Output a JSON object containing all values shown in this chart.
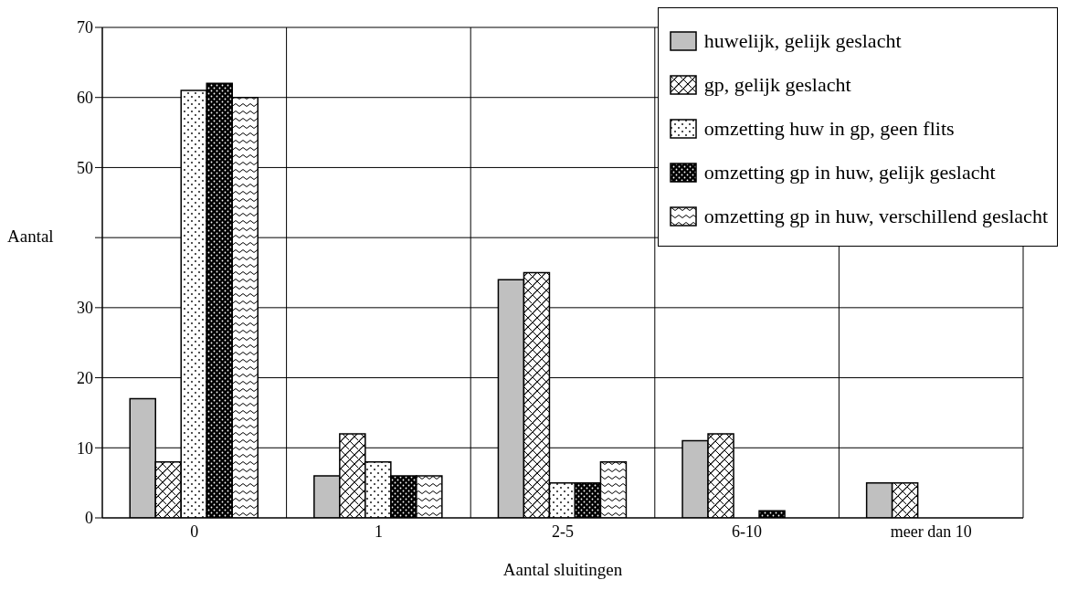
{
  "chart_data": {
    "type": "bar",
    "xlabel": "Aantal sluitingen",
    "ylabel": "Aantal",
    "categories": [
      "0",
      "1",
      "2-5",
      "6-10",
      "meer dan 10"
    ],
    "series": [
      {
        "name": "huwelijk, gelijk geslacht",
        "color": "#c0c0c0",
        "values": [
          17,
          6,
          34,
          11,
          5
        ]
      },
      {
        "name": "gp, gelijk geslacht",
        "color": "#000000",
        "values": [
          8,
          12,
          35,
          12,
          5
        ]
      },
      {
        "name": "omzetting huw in gp, geen flits",
        "color": "#000000",
        "values": [
          61,
          8,
          5,
          0,
          0
        ]
      },
      {
        "name": "omzetting gp in huw, gelijk geslacht",
        "color": "#000000",
        "values": [
          62,
          6,
          5,
          1,
          0
        ]
      },
      {
        "name": "omzetting gp in huw, verschillend geslacht",
        "color": "#000000",
        "values": [
          60,
          6,
          8,
          0,
          0
        ]
      }
    ],
    "ylim": [
      0,
      70
    ],
    "yticks": [
      0,
      10,
      20,
      30,
      {
        "value": 40,
        "label": null
      },
      50,
      60,
      70
    ],
    "grid": true,
    "legend": "top right"
  }
}
